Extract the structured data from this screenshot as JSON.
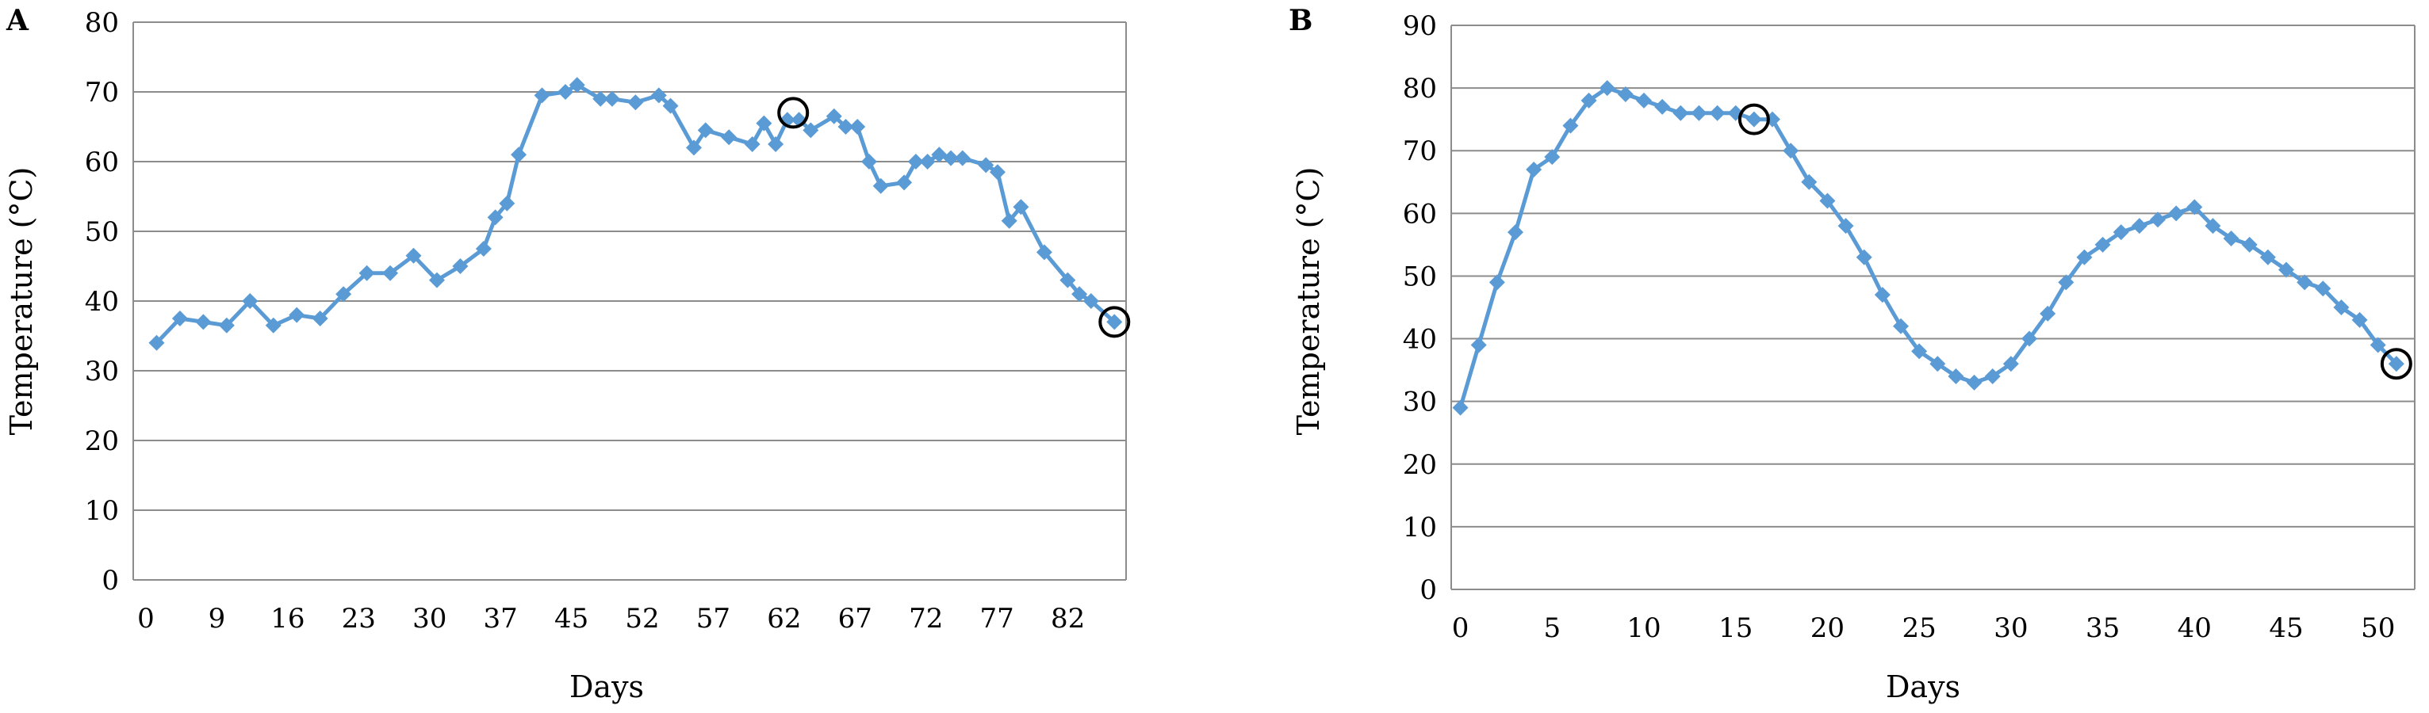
{
  "chart_data": [
    {
      "panel": "A",
      "type": "line",
      "xlabel": "Days",
      "ylabel": "Temperature (°C)",
      "xlim": [
        0,
        85
      ],
      "ylim": [
        0,
        80
      ],
      "y_ticks": [
        0,
        10,
        20,
        30,
        40,
        50,
        60,
        70,
        80
      ],
      "x_tick_labels": [
        "0",
        "9",
        "16",
        "23",
        "30",
        "37",
        "45",
        "52",
        "57",
        "62",
        "67",
        "72",
        "77",
        "82"
      ],
      "grid": "horizontal",
      "legend": "none",
      "color": "#5b9bd5",
      "series": [
        {
          "x": [
            2,
            4,
            6,
            8,
            10,
            12,
            14,
            16,
            18,
            20,
            22,
            24,
            26,
            28,
            30,
            31,
            32,
            33,
            35,
            37,
            38,
            40,
            41,
            43,
            45,
            46,
            48,
            49,
            51,
            53,
            54,
            55,
            56,
            57,
            58,
            60,
            61,
            62,
            63,
            64,
            66,
            67,
            68,
            69,
            70,
            71,
            73,
            74,
            75,
            76,
            78,
            80,
            81,
            82,
            84
          ],
          "y": [
            34,
            37.5,
            37,
            36.5,
            40,
            36.5,
            38,
            37.5,
            41,
            44,
            44,
            46.5,
            43,
            45,
            47.5,
            52,
            54,
            61,
            69.5,
            70,
            71,
            69,
            69,
            68.5,
            69.5,
            68,
            62,
            64.5,
            63.5,
            62.5,
            65.5,
            62.5,
            66,
            66,
            64.5,
            66.5,
            65,
            65,
            60,
            56.5,
            57,
            60,
            60,
            61,
            60.5,
            60.5,
            59.5,
            58.5,
            51.5,
            53.5,
            47,
            43,
            41,
            40,
            37
          ]
        }
      ],
      "circled_points": [
        {
          "x": 56.5,
          "y": 67
        },
        {
          "x": 84,
          "y": 37
        }
      ]
    },
    {
      "panel": "B",
      "type": "line",
      "xlabel": "Days",
      "ylabel": "Temperature (°C)",
      "xlim": [
        -0.5,
        52
      ],
      "ylim": [
        0,
        90
      ],
      "y_ticks": [
        0,
        10,
        20,
        30,
        40,
        50,
        60,
        70,
        80,
        90
      ],
      "x_tick_labels": [
        "0",
        "5",
        "10",
        "15",
        "20",
        "25",
        "30",
        "35",
        "40",
        "45",
        "50"
      ],
      "x_tick_values": [
        0,
        5,
        10,
        15,
        20,
        25,
        30,
        35,
        40,
        45,
        50
      ],
      "grid": "horizontal",
      "legend": "none",
      "color": "#5b9bd5",
      "series": [
        {
          "x": [
            0,
            1,
            2,
            3,
            4,
            5,
            6,
            7,
            8,
            9,
            10,
            11,
            12,
            13,
            14,
            15,
            16,
            17,
            18,
            19,
            20,
            21,
            22,
            23,
            24,
            25,
            26,
            27,
            28,
            29,
            30,
            31,
            32,
            33,
            34,
            35,
            36,
            37,
            38,
            39,
            40,
            41,
            42,
            43,
            44,
            45,
            46,
            47,
            48,
            49,
            50,
            51
          ],
          "y": [
            29,
            39,
            49,
            57,
            67,
            69,
            74,
            78,
            80,
            79,
            78,
            77,
            76,
            76,
            76,
            76,
            75,
            75,
            70,
            65,
            62,
            58,
            53,
            47,
            42,
            38,
            36,
            34,
            33,
            34,
            36,
            40,
            44,
            49,
            53,
            55,
            57,
            58,
            59,
            60,
            61,
            58,
            56,
            55,
            53,
            51,
            49,
            48,
            45,
            43,
            39,
            36
          ]
        }
      ],
      "circled_points": [
        {
          "x": 16,
          "y": 75
        },
        {
          "x": 51,
          "y": 36
        }
      ]
    }
  ]
}
